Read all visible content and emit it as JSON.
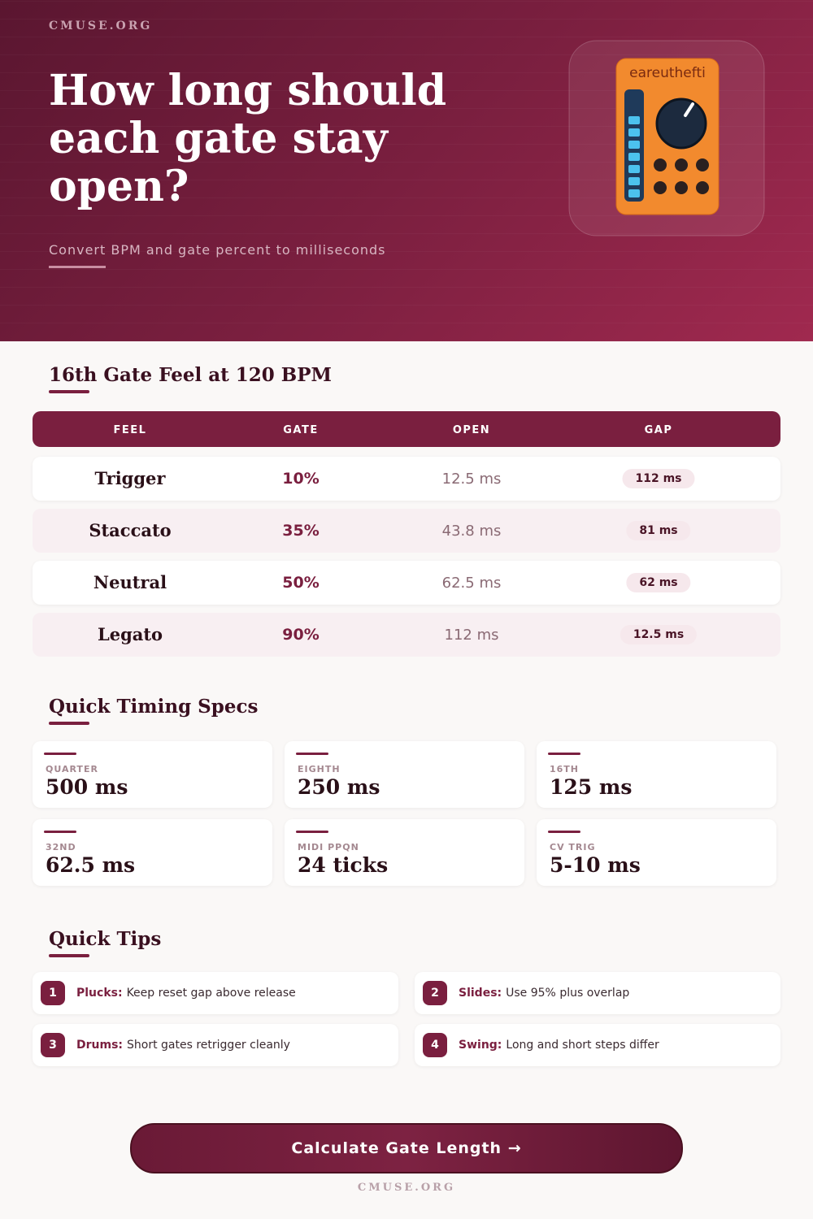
{
  "header": {
    "site": "CMUSE.ORG",
    "title": "How long should each gate stay open?",
    "subtitle": "Convert BPM and gate percent to milliseconds",
    "icon_label": "eareuthefti"
  },
  "table": {
    "title": "16th Gate Feel at 120 BPM",
    "columns": [
      "FEEL",
      "GATE",
      "OPEN",
      "GAP"
    ],
    "rows": [
      [
        "Trigger",
        "10%",
        "12.5 ms",
        "112 ms"
      ],
      [
        "Staccato",
        "35%",
        "43.8 ms",
        "81 ms"
      ],
      [
        "Neutral",
        "50%",
        "62.5 ms",
        "62 ms"
      ],
      [
        "Legato",
        "90%",
        "112 ms",
        "12.5 ms"
      ]
    ]
  },
  "specs": {
    "title": "Quick Timing Specs",
    "items": [
      {
        "label": "QUARTER",
        "value": "500 ms"
      },
      {
        "label": "EIGHTH",
        "value": "250 ms"
      },
      {
        "label": "16TH",
        "value": "125 ms"
      },
      {
        "label": "32ND",
        "value": "62.5 ms"
      },
      {
        "label": "MIDI PPQN",
        "value": "24 ticks"
      },
      {
        "label": "CV TRIG",
        "value": "5-10 ms"
      }
    ]
  },
  "tips": {
    "title": "Quick Tips",
    "items": [
      {
        "number": "1",
        "label": "Plucks:",
        "text": "Keep reset gap above release"
      },
      {
        "number": "2",
        "label": "Slides:",
        "text": "Use 95% plus overlap"
      },
      {
        "number": "3",
        "label": "Drums:",
        "text": "Short gates retrigger cleanly"
      },
      {
        "number": "4",
        "label": "Swing:",
        "text": "Long and short steps differ"
      }
    ]
  },
  "button": {
    "label": "Calculate Gate Length →"
  },
  "footer": {
    "site": "CMUSE.ORG"
  }
}
